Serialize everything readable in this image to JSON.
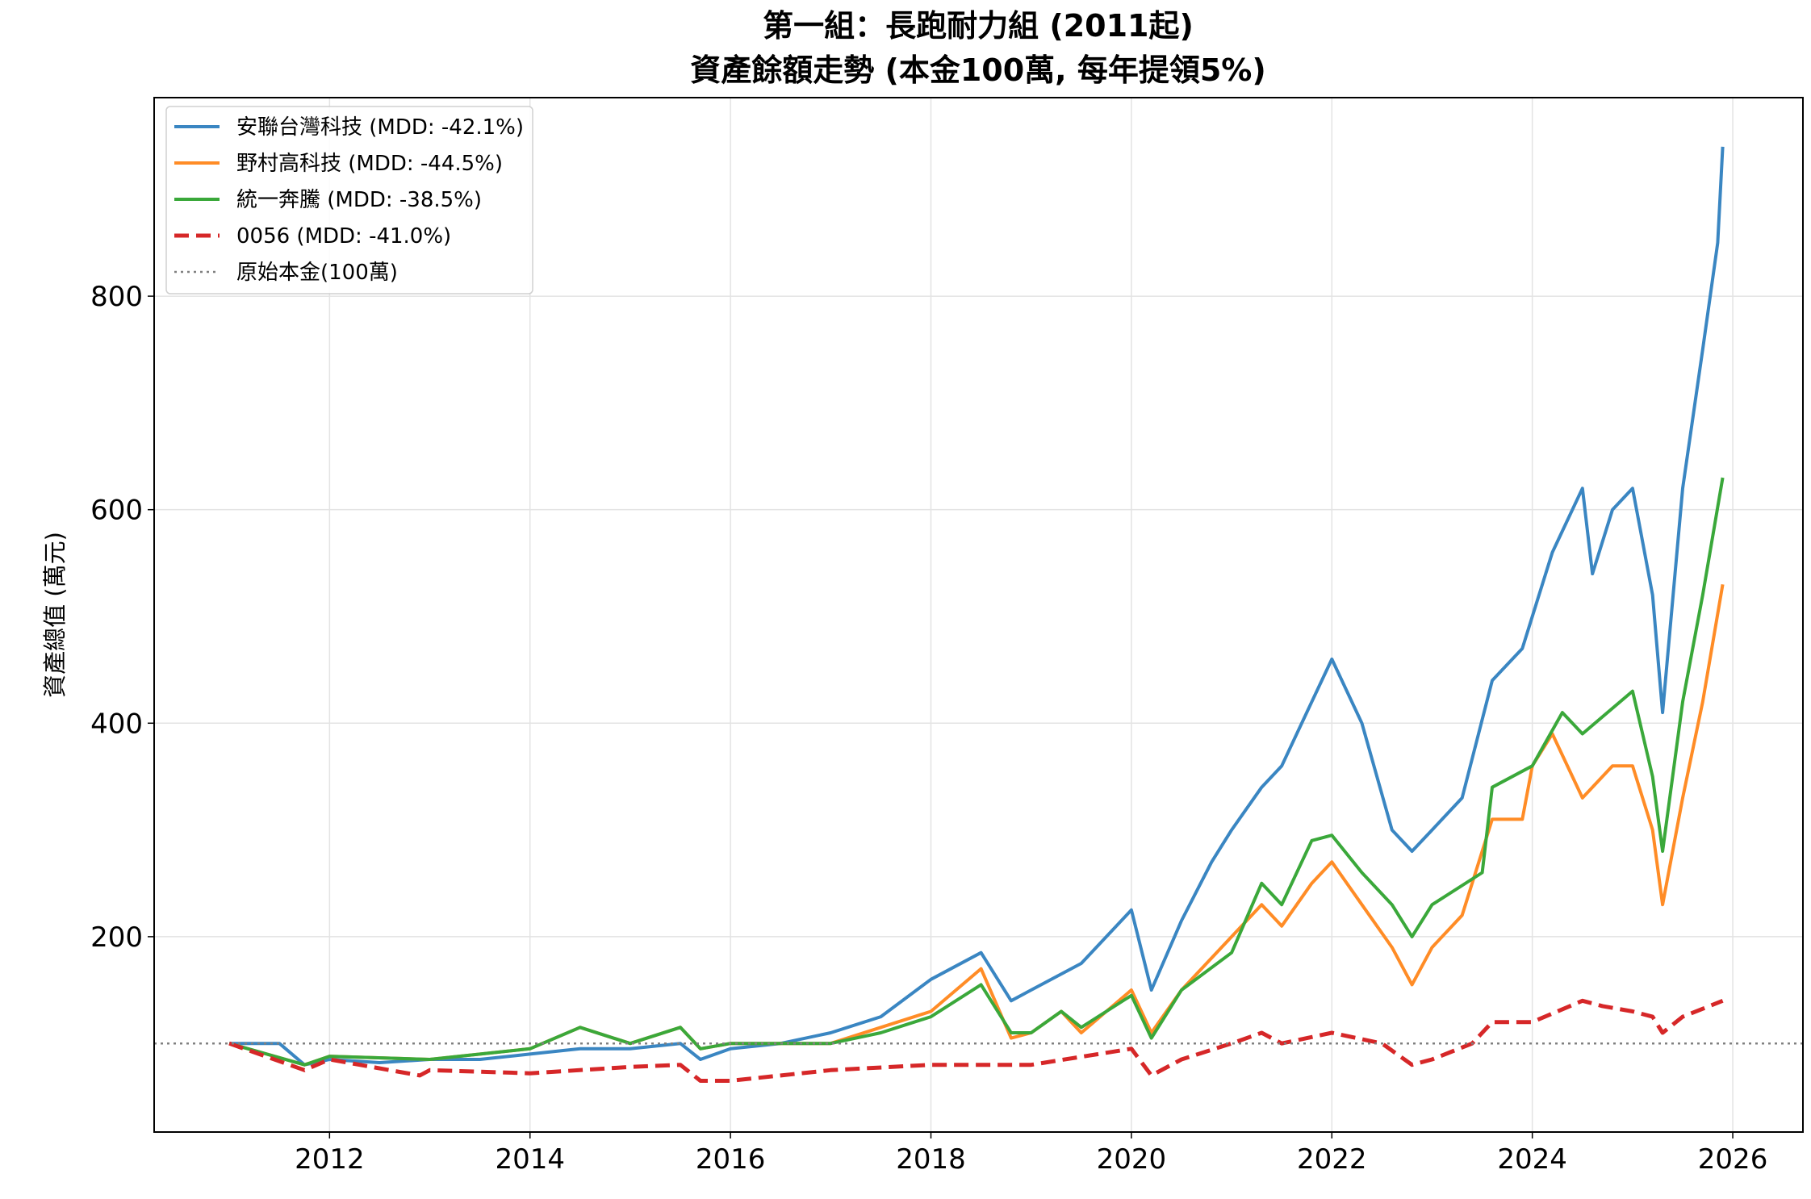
{
  "chart_data": {
    "type": "line",
    "title": "第一組：長跑耐力組 (2011起)",
    "subtitle": "資產餘額走勢 (本金100萬, 每年提領5%)",
    "xlabel": "",
    "ylabel": "資產總值 (萬元)",
    "xlim": [
      2010.25,
      2026.7
    ],
    "ylim": [
      17,
      986
    ],
    "xticks": [
      2012,
      2014,
      2016,
      2018,
      2020,
      2022,
      2024,
      2026
    ],
    "yticks": [
      200,
      400,
      600,
      800
    ],
    "grid": true,
    "legend_position": "top-left",
    "series": [
      {
        "name": "安聯台灣科技 (MDD: -42.1%)",
        "color": "#3a86c2",
        "style": "solid",
        "x": [
          2011,
          2011.5,
          2011.75,
          2012,
          2012.5,
          2013,
          2013.5,
          2014,
          2014.5,
          2015,
          2015.5,
          2015.7,
          2016,
          2016.5,
          2017,
          2017.5,
          2018,
          2018.5,
          2018.8,
          2019,
          2019.5,
          2020,
          2020.2,
          2020.5,
          2020.8,
          2021,
          2021.3,
          2021.5,
          2021.8,
          2022,
          2022.3,
          2022.6,
          2022.8,
          2023,
          2023.3,
          2023.6,
          2023.9,
          2024,
          2024.2,
          2024.5,
          2024.6,
          2024.8,
          2025,
          2025.2,
          2025.3,
          2025.5,
          2025.7,
          2025.85,
          2025.9
        ],
        "y": [
          100,
          100,
          80,
          85,
          82,
          85,
          85,
          90,
          95,
          95,
          100,
          85,
          95,
          100,
          110,
          125,
          160,
          185,
          140,
          150,
          175,
          225,
          150,
          215,
          270,
          300,
          340,
          360,
          420,
          460,
          400,
          300,
          280,
          300,
          330,
          440,
          470,
          500,
          560,
          620,
          540,
          600,
          620,
          520,
          410,
          620,
          750,
          850,
          940
        ]
      },
      {
        "name": "野村高科技 (MDD: -44.5%)",
        "color": "#ff8c26",
        "style": "solid",
        "x": [
          2011,
          2011.75,
          2012,
          2013,
          2014,
          2014.5,
          2015,
          2015.5,
          2015.7,
          2016,
          2017,
          2017.5,
          2018,
          2018.5,
          2018.8,
          2019,
          2019.3,
          2019.5,
          2020,
          2020.2,
          2020.5,
          2021,
          2021.3,
          2021.5,
          2021.8,
          2022,
          2022.3,
          2022.6,
          2022.8,
          2023,
          2023.3,
          2023.6,
          2023.9,
          2024,
          2024.2,
          2024.5,
          2024.8,
          2025,
          2025.2,
          2025.3,
          2025.5,
          2025.7,
          2025.9
        ],
        "y": [
          100,
          80,
          88,
          85,
          95,
          115,
          100,
          115,
          95,
          100,
          100,
          115,
          130,
          170,
          105,
          110,
          130,
          110,
          150,
          110,
          150,
          200,
          230,
          210,
          250,
          270,
          230,
          190,
          155,
          190,
          220,
          310,
          310,
          360,
          390,
          330,
          360,
          360,
          300,
          230,
          330,
          420,
          530
        ]
      },
      {
        "name": "統一奔騰 (MDD: -38.5%)",
        "color": "#3aa83a",
        "style": "solid",
        "x": [
          2011,
          2011.75,
          2012,
          2013,
          2014,
          2014.5,
          2015,
          2015.5,
          2015.7,
          2016,
          2017,
          2017.5,
          2018,
          2018.5,
          2018.8,
          2019,
          2019.3,
          2019.5,
          2020,
          2020.2,
          2020.5,
          2021,
          2021.3,
          2021.5,
          2021.8,
          2022,
          2022.3,
          2022.6,
          2022.8,
          2023,
          2023.5,
          2023.6,
          2024,
          2024.3,
          2024.5,
          2025,
          2025.2,
          2025.3,
          2025.5,
          2025.7,
          2025.9
        ],
        "y": [
          100,
          80,
          88,
          85,
          95,
          115,
          100,
          115,
          95,
          100,
          100,
          110,
          125,
          155,
          110,
          110,
          130,
          115,
          145,
          105,
          150,
          185,
          250,
          230,
          290,
          295,
          260,
          230,
          200,
          230,
          260,
          340,
          360,
          410,
          390,
          430,
          350,
          280,
          420,
          520,
          630
        ]
      },
      {
        "name": "0056 (MDD: -41.0%)",
        "color": "#d62728",
        "style": "dashed",
        "x": [
          2011,
          2011.75,
          2012,
          2012.9,
          2013,
          2014,
          2015,
          2015.5,
          2015.7,
          2016,
          2017,
          2018,
          2019,
          2020,
          2020.2,
          2020.5,
          2021,
          2021.3,
          2021.5,
          2022,
          2022.5,
          2022.8,
          2023,
          2023.4,
          2023.6,
          2024,
          2024.5,
          2024.7,
          2025,
          2025.2,
          2025.3,
          2025.5,
          2025.9
        ],
        "y": [
          100,
          75,
          85,
          70,
          75,
          72,
          78,
          80,
          65,
          65,
          75,
          80,
          80,
          95,
          70,
          85,
          100,
          110,
          100,
          110,
          100,
          80,
          85,
          100,
          120,
          120,
          140,
          135,
          130,
          125,
          110,
          125,
          140
        ]
      },
      {
        "name": "原始本金(100萬)",
        "color": "#808080",
        "style": "dotted",
        "x": [
          2010.25,
          2026.7
        ],
        "y": [
          100,
          100
        ]
      }
    ]
  }
}
